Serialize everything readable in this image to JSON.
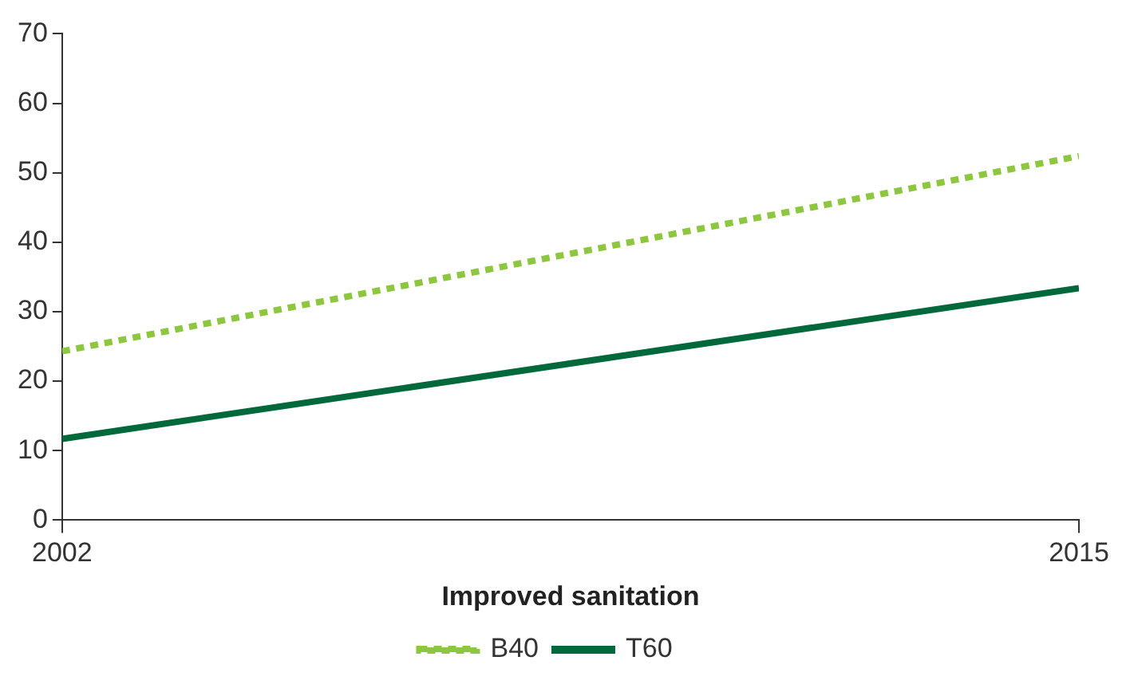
{
  "chart_data": {
    "type": "line",
    "xlabel": "Improved sanitation",
    "x": [
      2002,
      2015
    ],
    "xlim": [
      2002,
      2015
    ],
    "xticks": [
      2002,
      2015
    ],
    "ylim": [
      0,
      70
    ],
    "yticks": [
      0,
      10,
      20,
      30,
      40,
      50,
      60,
      70
    ],
    "grid": false,
    "legend": "bottom",
    "marker": "none",
    "series": [
      {
        "name": "B40",
        "color": "#8dc63f",
        "values": [
          24.3,
          52.4
        ],
        "line_style": "dotted"
      },
      {
        "name": "T60",
        "color": "#00693c",
        "values": [
          11.7,
          33.4
        ],
        "line_style": "solid"
      }
    ]
  }
}
